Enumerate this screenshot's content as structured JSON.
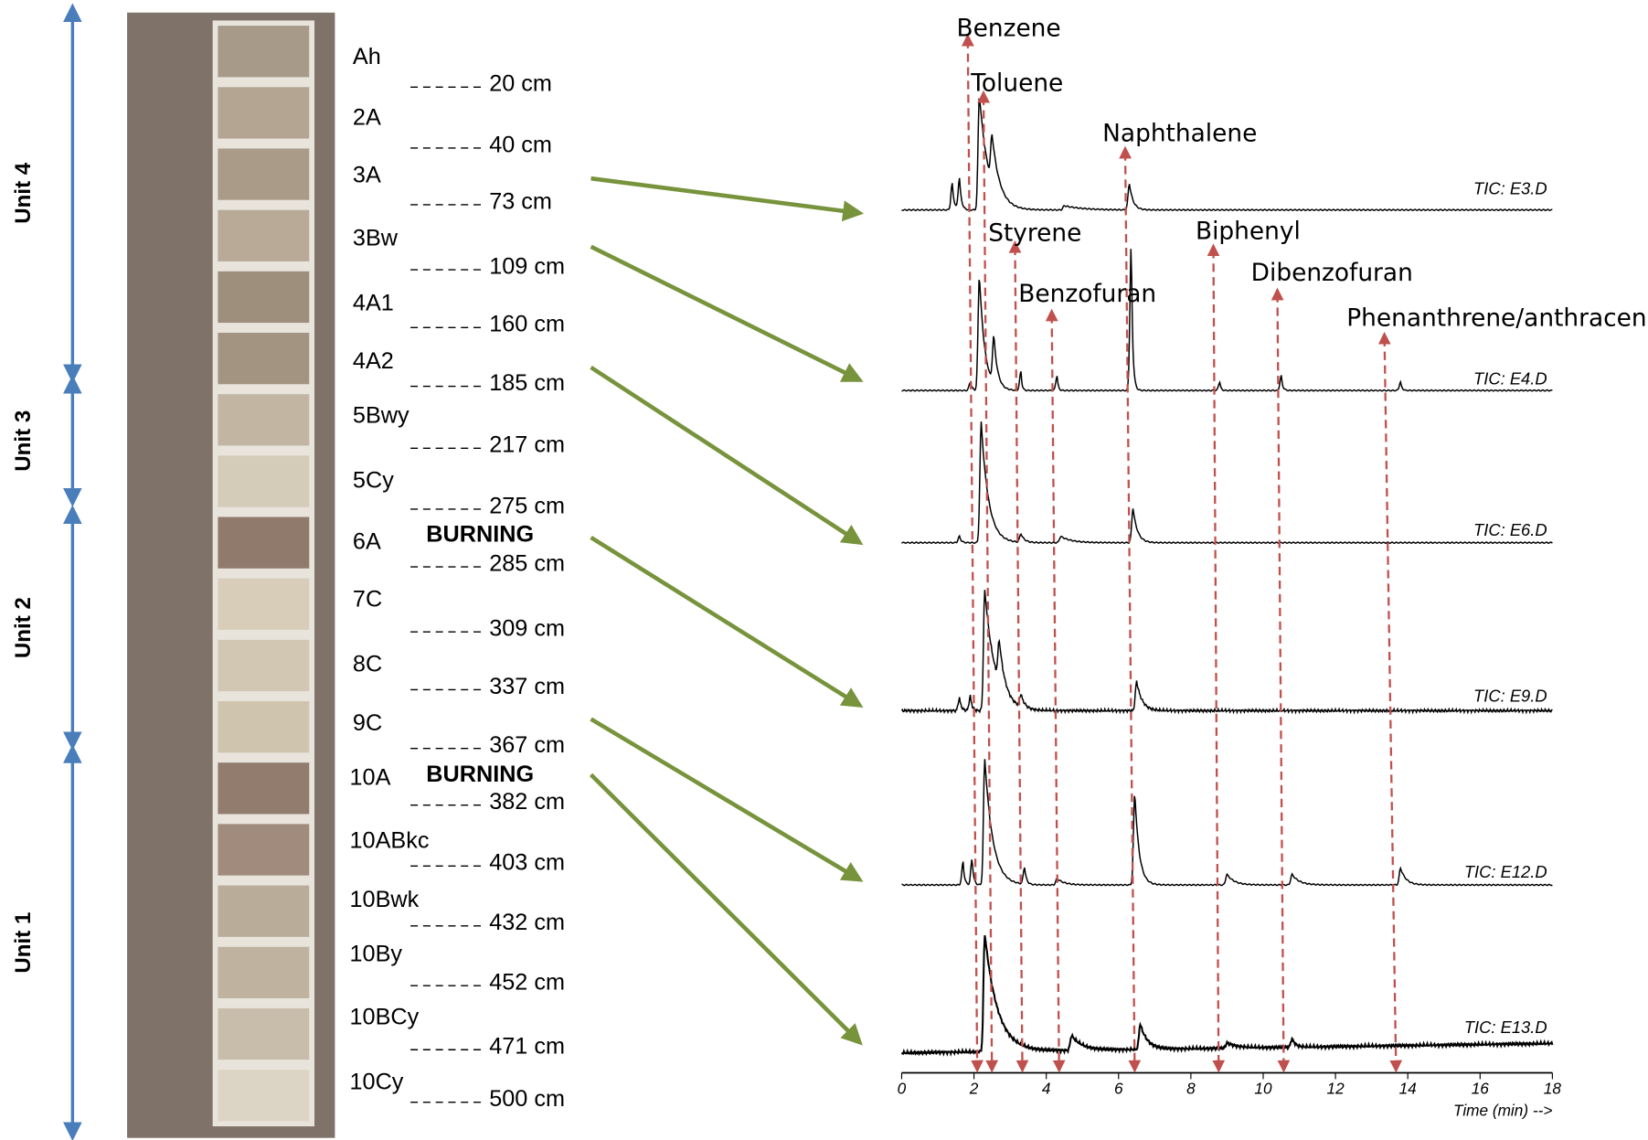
{
  "units": [
    "Unit 4",
    "Unit 3",
    "Unit 2",
    "Unit 1"
  ],
  "horizons": [
    "Ah",
    "2A",
    "3A",
    "3Bw",
    "4A1",
    "4A2",
    "5Bwy",
    "5Cy",
    "6A",
    "7C",
    "8C",
    "9C",
    "10A",
    "10ABkc",
    "10Bwk",
    "10By",
    "10BCy",
    "10Cy"
  ],
  "depths": [
    "20 cm",
    "40 cm",
    "73 cm",
    "109 cm",
    "160 cm",
    "185 cm",
    "217 cm",
    "275 cm",
    "285 cm",
    "309 cm",
    "337 cm",
    "367 cm",
    "382 cm",
    "403 cm",
    "432 cm",
    "452 cm",
    "471 cm",
    "500 cm"
  ],
  "burning_labels": [
    "BURNING",
    "BURNING"
  ],
  "compounds": [
    "Benzene",
    "Toluene",
    "Naphthalene",
    "Styrene",
    "Biphenyl",
    "Benzofuran",
    "Dibenzofuran",
    "Phenanthrene/anthracene"
  ],
  "chromatograms": [
    "TIC: E3.D",
    "TIC: E4.D",
    "TIC: E6.D",
    "TIC: E9.D",
    "TIC: E12.D",
    "TIC: E13.D"
  ],
  "time_axis": {
    "ticks": [
      0,
      2,
      4,
      6,
      8,
      10,
      12,
      14,
      16,
      18
    ],
    "label": "Time (min) -->"
  }
}
